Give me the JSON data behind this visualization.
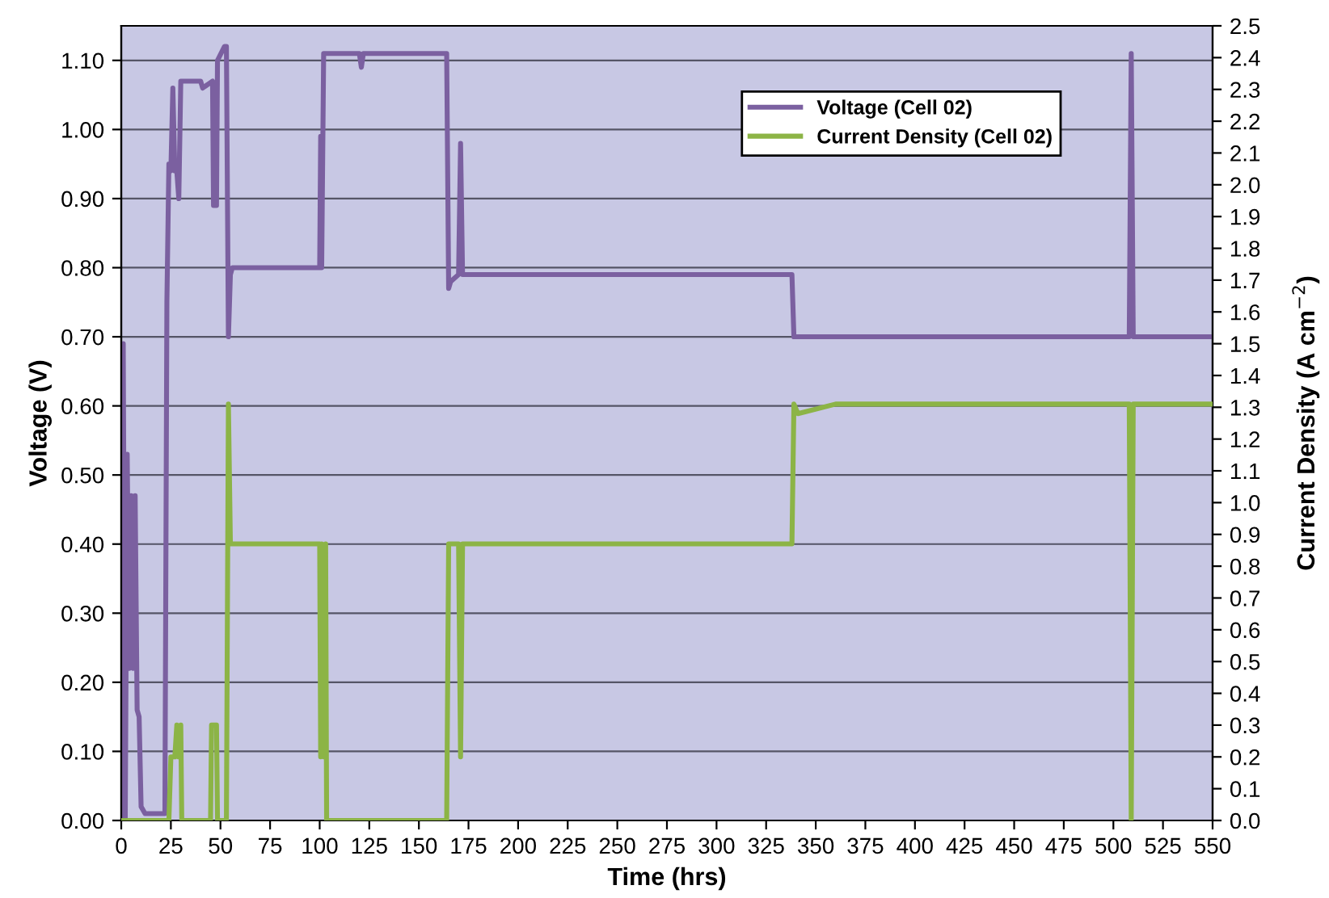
{
  "chart_data": {
    "type": "line",
    "xlabel": "Time (hrs)",
    "ylabel": "Voltage (V)",
    "y2label": "Current Density (A cm$^{−2}$)",
    "xlim": [
      0,
      550
    ],
    "xticks": [
      0,
      25,
      50,
      75,
      100,
      125,
      150,
      175,
      200,
      225,
      250,
      275,
      300,
      325,
      350,
      375,
      400,
      425,
      450,
      475,
      500,
      525,
      550
    ],
    "ylim": [
      0,
      1.15
    ],
    "yticks": [
      {
        "value": 0,
        "label": "0.00"
      },
      {
        "value": 0.1,
        "label": "0.10"
      },
      {
        "value": 0.2,
        "label": "0.20"
      },
      {
        "value": 0.3,
        "label": "0.30"
      },
      {
        "value": 0.4,
        "label": "0.40"
      },
      {
        "value": 0.5,
        "label": "0.50"
      },
      {
        "value": 0.6,
        "label": "0.60"
      },
      {
        "value": 0.7,
        "label": "0.70"
      },
      {
        "value": 0.8,
        "label": "0.80"
      },
      {
        "value": 0.9,
        "label": "0.90"
      },
      {
        "value": 1.0,
        "label": "1.00"
      },
      {
        "value": 1.1,
        "label": "1.10"
      }
    ],
    "y2lim": [
      0,
      2.5
    ],
    "y2ticks": [
      {
        "value": 0,
        "label": "0.0"
      },
      0.1,
      0.2,
      0.3,
      0.4,
      0.5,
      0.6,
      0.7,
      0.8,
      0.9,
      {
        "value": 1.0,
        "label": "1.0"
      },
      1.1,
      1.2,
      1.3,
      1.4,
      1.5,
      1.6,
      1.7,
      1.8,
      1.9,
      {
        "value": 2.0,
        "label": "2.0"
      },
      2.1,
      2.2,
      2.3,
      2.4,
      2.5
    ],
    "grid": "y",
    "legend": "top right",
    "marker": "none",
    "line_style": "solid",
    "series": [
      {
        "name": "Voltage (Cell 02)",
        "color": "#7b60a0",
        "x": [
          0,
          1,
          2,
          3,
          4,
          5,
          6,
          7,
          8,
          9,
          10,
          12,
          22,
          23,
          24,
          25,
          26,
          27,
          28,
          29,
          30,
          40,
          41,
          46,
          46.5,
          48,
          48.5,
          52,
          53,
          54,
          55,
          56,
          100,
          100.5,
          101,
          102,
          120,
          121,
          122,
          164,
          165,
          166,
          170,
          171,
          172,
          338,
          339,
          508,
          509,
          510,
          550
        ],
        "values": [
          0.0,
          0.69,
          0.0,
          0.53,
          0.22,
          0.47,
          0.22,
          0.47,
          0.16,
          0.15,
          0.02,
          0.01,
          0.01,
          0.75,
          0.95,
          0.94,
          1.06,
          0.94,
          0.94,
          0.9,
          1.07,
          1.07,
          1.06,
          1.07,
          0.89,
          0.89,
          1.1,
          1.12,
          1.12,
          0.7,
          0.79,
          0.8,
          0.8,
          0.99,
          0.8,
          1.11,
          1.11,
          1.09,
          1.11,
          1.11,
          0.77,
          0.78,
          0.79,
          0.98,
          0.79,
          0.79,
          0.7,
          0.7,
          1.11,
          0.7,
          0.7
        ]
      },
      {
        "name": "Current Density (Cell 02)",
        "color": "#8cb446",
        "axis": "y2",
        "x": [
          0,
          24,
          25,
          27,
          28,
          29,
          30,
          30.5,
          45,
          45.5,
          48,
          48.5,
          53,
          54,
          55,
          100,
          100.5,
          101,
          102,
          103,
          103.5,
          164,
          165,
          170,
          171,
          172,
          338,
          339,
          341,
          360,
          508,
          509,
          510,
          550
        ],
        "values": [
          0,
          0,
          0.2,
          0.2,
          0.3,
          0.2,
          0.3,
          0,
          0,
          0.3,
          0.3,
          0,
          0,
          1.31,
          0.87,
          0.87,
          0.2,
          0.87,
          0.2,
          0.87,
          0,
          0,
          0.87,
          0.87,
          0.2,
          0.87,
          0.87,
          1.31,
          1.28,
          1.31,
          1.31,
          0,
          1.31,
          1.31
        ]
      }
    ]
  }
}
